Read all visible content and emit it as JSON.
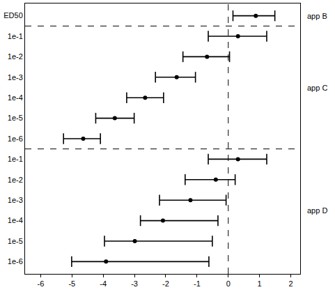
{
  "chart_data": {
    "type": "forest",
    "xlim": [
      -6.5,
      2.3
    ],
    "xticks": [
      -6,
      -5,
      -4,
      -3,
      -2,
      -1,
      0,
      1,
      2
    ],
    "reference_line": 0,
    "color": "#000000",
    "groups": [
      {
        "name": "app B",
        "rows": [
          {
            "label": "ED50",
            "estimate": 0.88,
            "lower": 0.15,
            "upper": 1.49
          }
        ]
      },
      {
        "name": "app C",
        "rows": [
          {
            "label": "1e-1",
            "estimate": 0.31,
            "lower": -0.64,
            "upper": 1.23
          },
          {
            "label": "1e-2",
            "estimate": -0.68,
            "lower": -1.45,
            "upper": 0.04
          },
          {
            "label": "1e-3",
            "estimate": -1.65,
            "lower": -2.33,
            "upper": -1.05
          },
          {
            "label": "1e-4",
            "estimate": -2.66,
            "lower": -3.25,
            "upper": -2.07
          },
          {
            "label": "1e-5",
            "estimate": -3.63,
            "lower": -4.24,
            "upper": -3.01
          },
          {
            "label": "1e-6",
            "estimate": -4.64,
            "lower": -5.27,
            "upper": -4.09
          }
        ]
      },
      {
        "name": "app D",
        "rows": [
          {
            "label": "1e-1",
            "estimate": 0.31,
            "lower": -0.64,
            "upper": 1.23
          },
          {
            "label": "1e-2",
            "estimate": -0.4,
            "lower": -1.38,
            "upper": 0.22
          },
          {
            "label": "1e-3",
            "estimate": -1.21,
            "lower": -2.2,
            "upper": -0.07
          },
          {
            "label": "1e-4",
            "estimate": -2.09,
            "lower": -2.81,
            "upper": -0.33
          },
          {
            "label": "1e-5",
            "estimate": -2.99,
            "lower": -3.96,
            "upper": -0.51
          },
          {
            "label": "1e-6",
            "estimate": -3.91,
            "lower": -5.01,
            "upper": -0.62
          }
        ]
      }
    ]
  }
}
